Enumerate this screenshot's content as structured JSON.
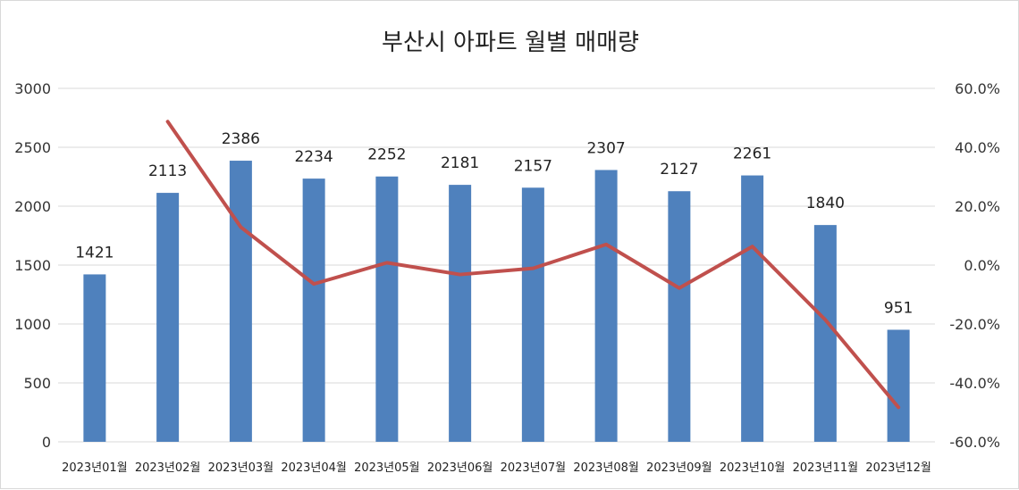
{
  "chart_data": {
    "type": "bar",
    "title": "부산시 아파트 월별 매매량",
    "categories": [
      "2023년01월",
      "2023년02월",
      "2023년03월",
      "2023년04월",
      "2023년05월",
      "2023년06월",
      "2023년07월",
      "2023년08월",
      "2023년09월",
      "2023년10월",
      "2023년11월",
      "2023년12월"
    ],
    "series": [
      {
        "type": "bar",
        "axis": "left",
        "values": [
          1421,
          2113,
          2386,
          2234,
          2252,
          2181,
          2157,
          2307,
          2127,
          2261,
          1840,
          951
        ],
        "color": "#4f81bd"
      },
      {
        "type": "line",
        "axis": "right",
        "values": [
          null,
          48.7,
          12.9,
          -6.4,
          0.8,
          -3.2,
          -1.1,
          7.0,
          -7.8,
          6.3,
          -18.6,
          -48.3
        ],
        "color": "#c0504d"
      }
    ],
    "ylim_left": [
      0,
      3000
    ],
    "yticks_left": [
      "0",
      "500",
      "1000",
      "1500",
      "2000",
      "2500",
      "3000"
    ],
    "ylim_right": [
      -60,
      60
    ],
    "yticks_right": [
      "-60.0%",
      "-40.0%",
      "-20.0%",
      "0.0%",
      "20.0%",
      "40.0%",
      "60.0%"
    ],
    "grid": true,
    "legend": "none"
  }
}
